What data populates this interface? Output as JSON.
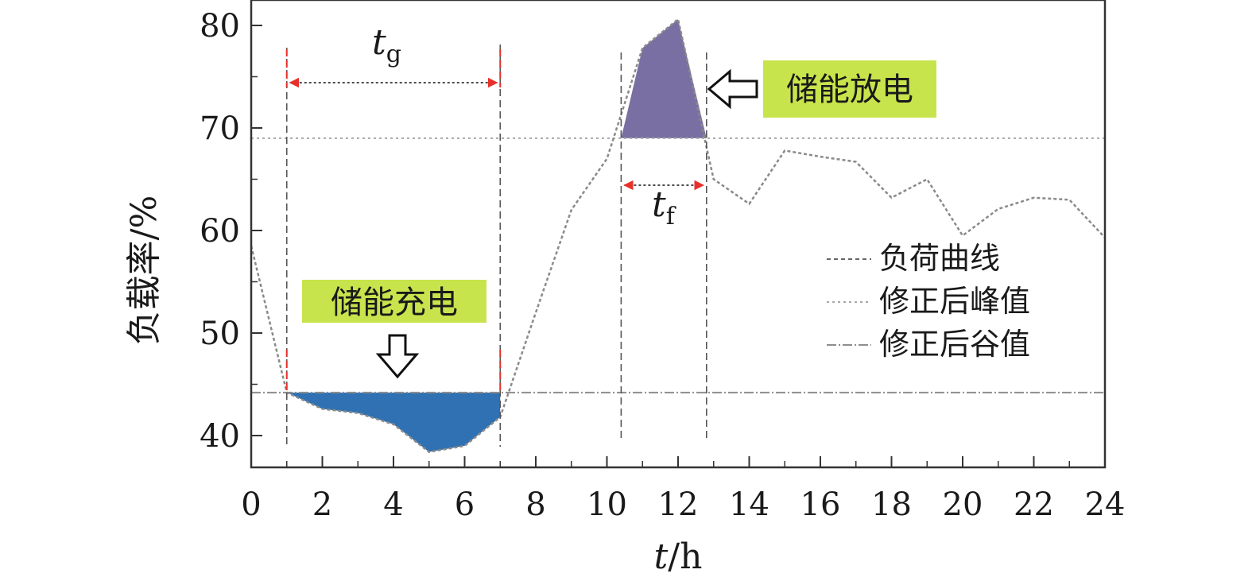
{
  "chart_data": {
    "type": "line",
    "xlabel": {
      "italic": "t",
      "unit": "/h"
    },
    "ylabel": "负载率/%",
    "xlim": [
      0,
      24
    ],
    "ylim": [
      37,
      82
    ],
    "xticks": [
      0,
      2,
      4,
      6,
      8,
      10,
      12,
      14,
      16,
      18,
      20,
      22,
      24
    ],
    "yticks": [
      40,
      50,
      60,
      70,
      80
    ],
    "grid": false,
    "legend_position": "right",
    "series": [
      {
        "name": "负荷曲线",
        "x": [
          0,
          1,
          2,
          3,
          4,
          5,
          6,
          7,
          8,
          9,
          10,
          11,
          12,
          13,
          14,
          15,
          16,
          17,
          18,
          19,
          20,
          21,
          22,
          23,
          24
        ],
        "y": [
          58.5,
          44.2,
          42.6,
          42.2,
          41.1,
          38.4,
          39.0,
          41.8,
          52.0,
          62.0,
          67.0,
          77.8,
          80.6,
          65.0,
          62.6,
          67.8,
          67.2,
          66.7,
          63.2,
          65.0,
          59.5,
          62.1,
          63.2,
          63.0,
          59.3
        ]
      },
      {
        "name": "修正后峰值",
        "y": 69.0
      },
      {
        "name": "修正后谷值",
        "y": 44.2
      }
    ],
    "annotations": {
      "charge_label": "储能充电",
      "discharge_label": "储能放电",
      "tg": {
        "main": "t",
        "sub": "g",
        "start": 1,
        "end": 7
      },
      "tf": {
        "main": "t",
        "sub": "f",
        "start": 10.4,
        "end": 12.8
      }
    },
    "colors": {
      "charge_fill": "#2f71b2",
      "discharge_fill": "#7a6fa3",
      "callout_bg": "#c7e44c",
      "arrow_red": "#e8302b",
      "curve": "#8a8a8a"
    }
  }
}
